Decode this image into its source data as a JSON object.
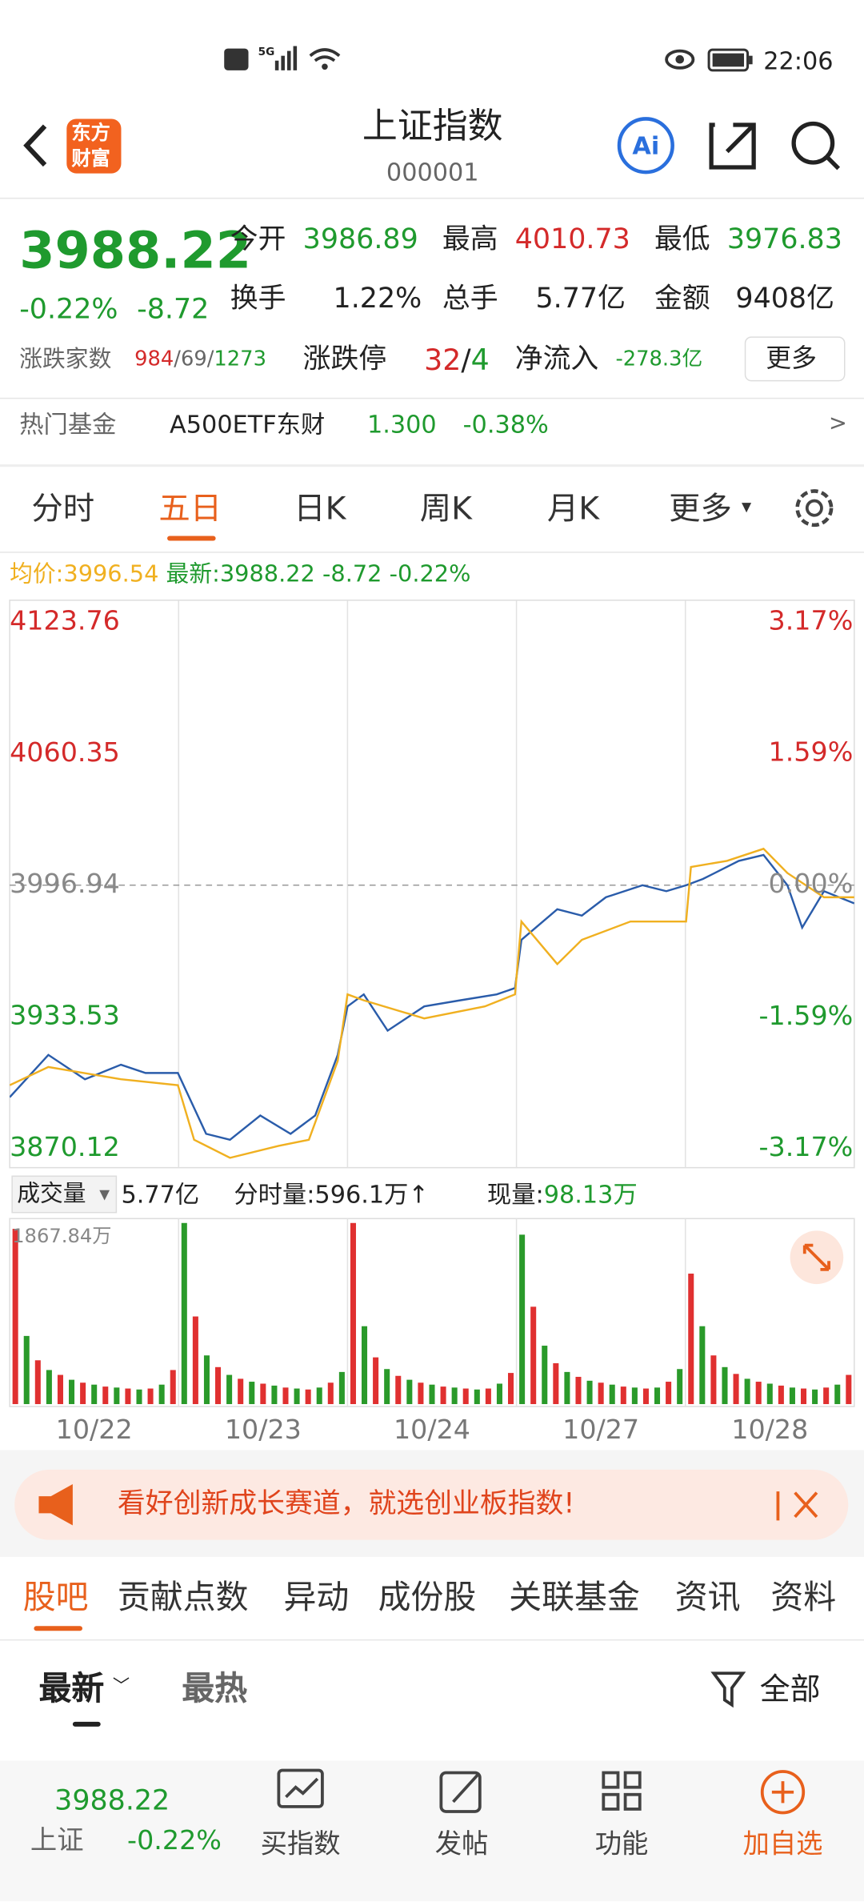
{
  "status_bar": {
    "network": "5G",
    "time": "22:06"
  },
  "header": {
    "logo": [
      "东方",
      "财富"
    ],
    "title": "上证指数",
    "code": "000001",
    "ai": "Ai"
  },
  "quote": {
    "price": "3988.22",
    "change_pct": "-0.22%",
    "change": "-8.72",
    "open_label": "今开",
    "open": "3986.89",
    "high_label": "最高",
    "high": "4010.73",
    "low_label": "最低",
    "low": "3976.83",
    "turnover_label": "换手",
    "turnover": "1.22%",
    "volume_label": "总手",
    "volume": "5.77亿",
    "amount_label": "金额",
    "amount": "9408亿",
    "breadth_label": "涨跌家数",
    "up": "984",
    "flat": "/69/",
    "down": "1273",
    "limit_label": "涨跌停",
    "limit_up": "32",
    "limit_sep": "/",
    "limit_down": "4",
    "inflow_label": "净流入",
    "inflow": "-278.3亿",
    "more": "更多"
  },
  "hot_fund": {
    "label": "热门基金",
    "name": "A500ETF东财",
    "price": "1.300",
    "change": "-0.38%",
    "arrow": ">"
  },
  "tabs": {
    "items": [
      "分时",
      "五日",
      "日K",
      "周K",
      "月K",
      "更多"
    ],
    "active": 1
  },
  "chart_header": {
    "avg_label": "均价:",
    "avg": "3996.54",
    "last_label": "最新:",
    "last": "3988.22",
    "change": "-8.72",
    "change_pct": "-0.22%"
  },
  "chart_data": {
    "type": "line",
    "xlim": [
      0,
      1200
    ],
    "xticks": [
      240,
      480,
      720,
      960
    ],
    "grid": true,
    "ylim": [
      3870.12,
      4123.76
    ],
    "yticks": [
      4123.76,
      4060.35,
      3996.94,
      3933.53,
      3870.12
    ],
    "baseline": 3996.94,
    "y2lim": [
      -3.17,
      3.17
    ],
    "y2ticks": [
      {
        "value": 3.17,
        "label": "3.17%"
      },
      {
        "value": 1.59,
        "label": "1.59%"
      },
      {
        "value": 0,
        "label": "0.00%"
      },
      {
        "value": -1.59,
        "label": "-1.59%"
      },
      {
        "value": -3.17,
        "label": "-3.17%"
      }
    ],
    "series": [
      {
        "color": "#2a5caa",
        "x": [
          0,
          55,
          107,
          158,
          193,
          239,
          279,
          313,
          356,
          399,
          434,
          466,
          480,
          503,
          537,
          589,
          640,
          692,
          718,
          727,
          778,
          813,
          847,
          899,
          933,
          961,
          985,
          1036,
          1071,
          1105,
          1126,
          1157,
          1200
        ],
        "values": [
          3894.7,
          3915.1,
          3903.4,
          3910.4,
          3906.4,
          3906.4,
          3877.1,
          3874.2,
          3885.9,
          3877.1,
          3885.9,
          3915.1,
          3938.5,
          3944.3,
          3926.8,
          3938.5,
          3941.4,
          3944.3,
          3947.3,
          3970.6,
          3985.3,
          3982.3,
          3991.1,
          3996.9,
          3994.0,
          3996.9,
          3999.9,
          4008.6,
          4011.5,
          3996.9,
          3976.5,
          3994.0,
          3988.2
        ]
      },
      {
        "color": "#f0b020",
        "x": [
          0,
          55,
          158,
          239,
          262,
          313,
          382,
          425,
          466,
          480,
          503,
          589,
          675,
          718,
          727,
          778,
          813,
          882,
          961,
          968,
          1019,
          1071,
          1105,
          1157,
          1200
        ],
        "values": [
          3900.5,
          3909.3,
          3903.4,
          3900.5,
          3874.2,
          3865.5,
          3871.3,
          3874.2,
          3912.2,
          3944.3,
          3941.4,
          3932.7,
          3938.5,
          3944.3,
          3979.4,
          3958.9,
          3970.6,
          3979.4,
          3979.4,
          4005.7,
          4008.6,
          4014.5,
          4002.8,
          3991.1,
          3991.1
        ]
      }
    ],
    "categories": [
      "10/22",
      "10/23",
      "10/24",
      "10/27",
      "10/28"
    ]
  },
  "volume_header": {
    "label": "成交量",
    "total": "5.77亿",
    "tick": "分时量:596.1万↑",
    "now_label": "现量:",
    "now": "98.13万"
  },
  "volume_data": {
    "type": "bar",
    "colors": [
      "#e03030",
      "#2a9a2a"
    ],
    "ylim": [
      0,
      1867.84
    ],
    "yticks": [
      {
        "value": 1867.84,
        "label": "1867.84万"
      }
    ],
    "values": [
      1800,
      700,
      450,
      350,
      300,
      250,
      220,
      200,
      180,
      170,
      160,
      150,
      160,
      200,
      350,
      1860,
      900,
      500,
      380,
      300,
      260,
      230,
      210,
      190,
      170,
      160,
      150,
      170,
      220,
      330,
      1860,
      800,
      480,
      360,
      290,
      250,
      220,
      200,
      180,
      170,
      160,
      150,
      160,
      210,
      320,
      1740,
      1000,
      600,
      420,
      330,
      280,
      240,
      220,
      200,
      180,
      170,
      160,
      170,
      230,
      360,
      1340,
      800,
      500,
      380,
      310,
      260,
      230,
      210,
      190,
      170,
      160,
      150,
      170,
      200,
      300
    ]
  },
  "banner": {
    "text": "看好创新成长赛道，就选创业板指数!"
  },
  "sub_tabs": {
    "items": [
      "股吧",
      "贡献点数",
      "异动",
      "成份股",
      "关联基金",
      "资讯",
      "资料"
    ]
  },
  "sort": {
    "items": [
      "最新",
      "最热"
    ],
    "filter": "全部"
  },
  "bottom_bar": {
    "price": "3988.22",
    "name": "上证",
    "change": "-0.22%",
    "items": [
      "买指数",
      "发帖",
      "功能",
      "加自选"
    ]
  }
}
